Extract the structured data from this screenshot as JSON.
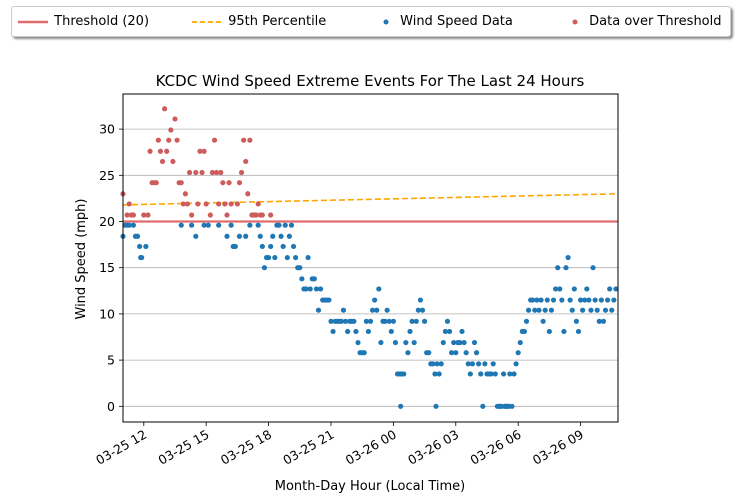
{
  "chart_data": {
    "type": "scatter",
    "title": "KCDC Wind Speed Extreme Events For The Last 24 Hours",
    "xlabel": "Month-Day Hour (Local Time)",
    "ylabel": "Wind Speed (mph)",
    "x_tick_labels": [
      "03-25 12",
      "03-25 15",
      "03-25 18",
      "03-25 21",
      "03-26 00",
      "03-26 03",
      "03-26 06",
      "03-26 09"
    ],
    "x_tick_hours": [
      12,
      15,
      18,
      21,
      24,
      27,
      30,
      33
    ],
    "x_range_hours": [
      11,
      34.8
    ],
    "ylim": [
      -1.7,
      33.8
    ],
    "yticks": [
      0,
      5,
      10,
      15,
      20,
      25,
      30
    ],
    "grid": "horizontal",
    "legend_position": "top",
    "colors": {
      "threshold": "#e06c6c",
      "percentile": "#ffa500",
      "wind_data": "#1f77b4",
      "over_threshold": "#cd5c5c"
    },
    "threshold": {
      "name": "Threshold (20)",
      "value": 20
    },
    "percentile_line": {
      "name": "95th Percentile",
      "start": 21.8,
      "end": 23.0
    },
    "series": [
      {
        "name": "Wind Speed Data",
        "points": [
          [
            11.0,
            18.4
          ],
          [
            11.1,
            19.6
          ],
          [
            11.2,
            19.6
          ],
          [
            11.3,
            19.6
          ],
          [
            11.5,
            19.6
          ],
          [
            11.6,
            18.4
          ],
          [
            11.7,
            18.4
          ],
          [
            11.8,
            17.3
          ],
          [
            11.85,
            16.1
          ],
          [
            11.9,
            16.1
          ],
          [
            12.1,
            17.3
          ],
          [
            13.8,
            19.6
          ],
          [
            14.3,
            19.6
          ],
          [
            14.5,
            18.4
          ],
          [
            14.9,
            19.6
          ],
          [
            15.1,
            19.6
          ],
          [
            15.6,
            19.6
          ],
          [
            16.0,
            18.4
          ],
          [
            16.2,
            19.6
          ],
          [
            16.3,
            17.3
          ],
          [
            16.4,
            17.3
          ],
          [
            16.6,
            18.4
          ],
          [
            16.9,
            18.4
          ],
          [
            17.1,
            19.6
          ],
          [
            17.5,
            19.6
          ],
          [
            17.6,
            18.4
          ],
          [
            17.7,
            17.3
          ],
          [
            17.8,
            15.0
          ],
          [
            17.9,
            16.1
          ],
          [
            18.0,
            16.1
          ],
          [
            18.1,
            17.3
          ],
          [
            18.2,
            18.4
          ],
          [
            18.3,
            16.1
          ],
          [
            18.4,
            19.6
          ],
          [
            18.5,
            19.6
          ],
          [
            18.6,
            18.4
          ],
          [
            18.7,
            17.3
          ],
          [
            18.8,
            19.6
          ],
          [
            18.9,
            16.1
          ],
          [
            19.0,
            18.4
          ],
          [
            19.1,
            19.6
          ],
          [
            19.2,
            17.3
          ],
          [
            19.3,
            16.1
          ],
          [
            19.4,
            15.0
          ],
          [
            19.5,
            15.0
          ],
          [
            19.6,
            13.8
          ],
          [
            19.7,
            12.7
          ],
          [
            19.8,
            12.7
          ],
          [
            19.9,
            16.1
          ],
          [
            20.0,
            12.7
          ],
          [
            20.1,
            13.8
          ],
          [
            20.2,
            13.8
          ],
          [
            20.3,
            12.7
          ],
          [
            20.4,
            10.4
          ],
          [
            20.5,
            12.7
          ],
          [
            20.6,
            11.5
          ],
          [
            20.7,
            11.5
          ],
          [
            20.8,
            11.5
          ],
          [
            20.9,
            11.5
          ],
          [
            21.0,
            9.2
          ],
          [
            21.1,
            8.1
          ],
          [
            21.2,
            9.2
          ],
          [
            21.3,
            9.2
          ],
          [
            21.4,
            9.2
          ],
          [
            21.5,
            9.2
          ],
          [
            21.6,
            10.4
          ],
          [
            21.7,
            9.2
          ],
          [
            21.8,
            8.1
          ],
          [
            21.9,
            9.2
          ],
          [
            22.0,
            9.2
          ],
          [
            22.1,
            9.2
          ],
          [
            22.2,
            8.1
          ],
          [
            22.3,
            6.9
          ],
          [
            22.4,
            5.8
          ],
          [
            22.5,
            5.8
          ],
          [
            22.6,
            5.8
          ],
          [
            22.7,
            9.2
          ],
          [
            22.8,
            8.1
          ],
          [
            22.9,
            9.2
          ],
          [
            23.0,
            10.4
          ],
          [
            23.1,
            11.5
          ],
          [
            23.2,
            10.4
          ],
          [
            23.3,
            12.7
          ],
          [
            23.4,
            6.9
          ],
          [
            23.5,
            9.2
          ],
          [
            23.6,
            9.2
          ],
          [
            23.7,
            10.4
          ],
          [
            23.8,
            9.2
          ],
          [
            23.9,
            8.1
          ],
          [
            24.0,
            9.2
          ],
          [
            24.1,
            6.9
          ],
          [
            24.2,
            3.5
          ],
          [
            24.3,
            3.5
          ],
          [
            24.35,
            0
          ],
          [
            24.4,
            3.5
          ],
          [
            24.5,
            3.5
          ],
          [
            24.6,
            6.9
          ],
          [
            24.7,
            5.8
          ],
          [
            24.8,
            8.1
          ],
          [
            24.9,
            9.2
          ],
          [
            25.0,
            6.9
          ],
          [
            25.1,
            9.2
          ],
          [
            25.2,
            10.4
          ],
          [
            25.3,
            11.5
          ],
          [
            25.4,
            10.4
          ],
          [
            25.5,
            9.2
          ],
          [
            25.6,
            5.8
          ],
          [
            25.7,
            5.8
          ],
          [
            25.8,
            4.6
          ],
          [
            25.9,
            4.6
          ],
          [
            26.0,
            3.5
          ],
          [
            26.05,
            0
          ],
          [
            26.1,
            4.6
          ],
          [
            26.2,
            3.5
          ],
          [
            26.3,
            4.6
          ],
          [
            26.4,
            6.9
          ],
          [
            26.5,
            8.1
          ],
          [
            26.6,
            9.2
          ],
          [
            26.7,
            8.1
          ],
          [
            26.8,
            5.8
          ],
          [
            26.9,
            6.9
          ],
          [
            27.0,
            5.8
          ],
          [
            27.1,
            6.9
          ],
          [
            27.2,
            6.9
          ],
          [
            27.3,
            8.1
          ],
          [
            27.4,
            6.9
          ],
          [
            27.5,
            5.8
          ],
          [
            27.6,
            4.6
          ],
          [
            27.7,
            3.5
          ],
          [
            27.8,
            4.6
          ],
          [
            27.9,
            6.9
          ],
          [
            28.0,
            5.8
          ],
          [
            28.1,
            4.6
          ],
          [
            28.2,
            3.5
          ],
          [
            28.3,
            0
          ],
          [
            28.4,
            4.6
          ],
          [
            28.5,
            3.5
          ],
          [
            28.6,
            3.5
          ],
          [
            28.7,
            3.5
          ],
          [
            28.8,
            4.6
          ],
          [
            28.9,
            3.5
          ],
          [
            29.0,
            0
          ],
          [
            29.1,
            0
          ],
          [
            29.15,
            0
          ],
          [
            29.2,
            0
          ],
          [
            29.3,
            3.5
          ],
          [
            29.35,
            0
          ],
          [
            29.4,
            0
          ],
          [
            29.45,
            0
          ],
          [
            29.5,
            0
          ],
          [
            29.55,
            0
          ],
          [
            29.6,
            3.5
          ],
          [
            29.7,
            0
          ],
          [
            29.8,
            3.5
          ],
          [
            29.9,
            4.6
          ],
          [
            30.0,
            5.8
          ],
          [
            30.1,
            6.9
          ],
          [
            30.2,
            8.1
          ],
          [
            30.3,
            8.1
          ],
          [
            30.4,
            9.2
          ],
          [
            30.5,
            10.4
          ],
          [
            30.6,
            11.5
          ],
          [
            30.7,
            11.5
          ],
          [
            30.8,
            10.4
          ],
          [
            30.9,
            11.5
          ],
          [
            31.0,
            10.4
          ],
          [
            31.1,
            11.5
          ],
          [
            31.2,
            9.2
          ],
          [
            31.3,
            10.4
          ],
          [
            31.4,
            11.5
          ],
          [
            31.5,
            8.1
          ],
          [
            31.6,
            10.4
          ],
          [
            31.7,
            11.5
          ],
          [
            31.8,
            12.7
          ],
          [
            31.9,
            15.0
          ],
          [
            32.0,
            12.7
          ],
          [
            32.1,
            11.5
          ],
          [
            32.2,
            8.1
          ],
          [
            32.3,
            15.0
          ],
          [
            32.4,
            16.1
          ],
          [
            32.5,
            11.5
          ],
          [
            32.6,
            10.4
          ],
          [
            32.7,
            12.7
          ],
          [
            32.8,
            9.2
          ],
          [
            32.9,
            8.1
          ],
          [
            33.0,
            11.5
          ],
          [
            33.1,
            10.4
          ],
          [
            33.2,
            11.5
          ],
          [
            33.3,
            12.7
          ],
          [
            33.4,
            11.5
          ],
          [
            33.5,
            10.4
          ],
          [
            33.6,
            15.0
          ],
          [
            33.7,
            11.5
          ],
          [
            33.8,
            10.4
          ],
          [
            33.9,
            9.2
          ],
          [
            34.0,
            11.5
          ],
          [
            34.1,
            9.2
          ],
          [
            34.2,
            10.4
          ],
          [
            34.3,
            11.5
          ],
          [
            34.4,
            12.7
          ],
          [
            34.5,
            10.4
          ],
          [
            34.6,
            11.5
          ],
          [
            34.7,
            12.7
          ]
        ]
      },
      {
        "name": "Data over Threshold",
        "points": [
          [
            11.0,
            23.0
          ],
          [
            11.2,
            20.7
          ],
          [
            11.3,
            21.9
          ],
          [
            11.4,
            20.7
          ],
          [
            11.5,
            20.7
          ],
          [
            12.0,
            20.7
          ],
          [
            12.2,
            20.7
          ],
          [
            12.3,
            27.6
          ],
          [
            12.4,
            24.2
          ],
          [
            12.5,
            24.2
          ],
          [
            12.6,
            24.2
          ],
          [
            12.7,
            28.8
          ],
          [
            12.8,
            27.6
          ],
          [
            12.9,
            26.5
          ],
          [
            13.0,
            32.2
          ],
          [
            13.1,
            27.6
          ],
          [
            13.2,
            28.8
          ],
          [
            13.3,
            29.9
          ],
          [
            13.4,
            26.5
          ],
          [
            13.5,
            31.1
          ],
          [
            13.6,
            28.8
          ],
          [
            13.7,
            24.2
          ],
          [
            13.8,
            24.2
          ],
          [
            13.9,
            21.9
          ],
          [
            14.0,
            23.0
          ],
          [
            14.1,
            21.9
          ],
          [
            14.2,
            25.3
          ],
          [
            14.3,
            20.7
          ],
          [
            14.5,
            25.3
          ],
          [
            14.6,
            21.9
          ],
          [
            14.7,
            27.6
          ],
          [
            14.8,
            25.3
          ],
          [
            14.9,
            27.6
          ],
          [
            15.0,
            21.9
          ],
          [
            15.2,
            20.7
          ],
          [
            15.3,
            25.3
          ],
          [
            15.4,
            28.8
          ],
          [
            15.5,
            25.3
          ],
          [
            15.6,
            21.9
          ],
          [
            15.7,
            25.3
          ],
          [
            15.8,
            24.2
          ],
          [
            15.9,
            21.9
          ],
          [
            16.0,
            20.7
          ],
          [
            16.1,
            24.2
          ],
          [
            16.2,
            21.9
          ],
          [
            16.5,
            21.9
          ],
          [
            16.6,
            24.2
          ],
          [
            16.7,
            25.3
          ],
          [
            16.8,
            28.8
          ],
          [
            16.9,
            26.5
          ],
          [
            17.0,
            23.0
          ],
          [
            17.1,
            28.8
          ],
          [
            17.2,
            20.7
          ],
          [
            17.3,
            20.7
          ],
          [
            17.4,
            20.7
          ],
          [
            17.5,
            21.9
          ],
          [
            17.6,
            20.7
          ],
          [
            17.7,
            20.7
          ],
          [
            18.1,
            20.7
          ]
        ]
      }
    ]
  },
  "legend": [
    {
      "label": "Threshold (20)"
    },
    {
      "label": "95th Percentile"
    },
    {
      "label": "Wind Speed Data"
    },
    {
      "label": "Data over Threshold"
    }
  ]
}
